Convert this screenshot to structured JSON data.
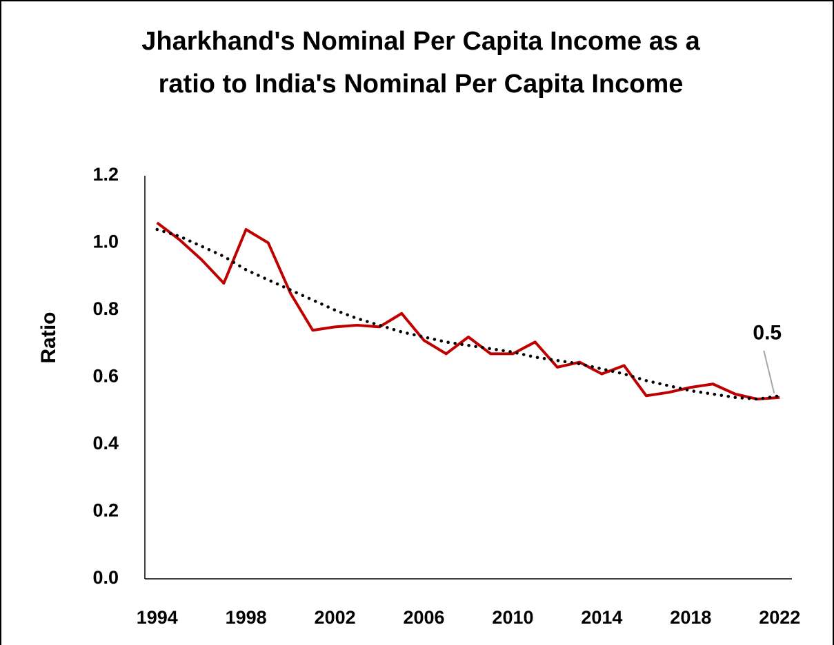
{
  "chart_data": {
    "type": "line",
    "title": "Jharkhand's Nominal Per Capita Income as a ratio to India's Nominal Per Capita Income",
    "y_label": "Ratio",
    "annotation": "0.5",
    "x": [
      1994,
      1995,
      1996,
      1997,
      1998,
      1999,
      2000,
      2001,
      2002,
      2003,
      2004,
      2005,
      2006,
      2007,
      2008,
      2009,
      2010,
      2011,
      2012,
      2013,
      2014,
      2015,
      2016,
      2017,
      2018,
      2019,
      2020,
      2021,
      2022
    ],
    "series": [
      {
        "color": "#c00000",
        "style": "solid",
        "values": [
          1.06,
          1.01,
          0.95,
          0.88,
          1.04,
          1.0,
          0.85,
          0.74,
          0.75,
          0.755,
          0.75,
          0.79,
          0.71,
          0.67,
          0.72,
          0.67,
          0.67,
          0.705,
          0.63,
          0.645,
          0.61,
          0.635,
          0.545,
          0.555,
          0.57,
          0.58,
          0.55,
          0.535,
          0.54
        ]
      },
      {
        "color": "#000000",
        "style": "dotted",
        "values": [
          1.04,
          1.02,
          0.99,
          0.96,
          0.92,
          0.89,
          0.86,
          0.83,
          0.8,
          0.775,
          0.755,
          0.735,
          0.72,
          0.705,
          0.695,
          0.685,
          0.675,
          0.66,
          0.65,
          0.64,
          0.625,
          0.61,
          0.59,
          0.575,
          0.56,
          0.55,
          0.54,
          0.535,
          0.545
        ]
      }
    ],
    "xlim": [
      1993.45,
      2022.55
    ],
    "xticks": [
      1994,
      1998,
      2002,
      2006,
      2010,
      2014,
      2018,
      2022
    ],
    "ylim": [
      0,
      1.2
    ],
    "yticks": [
      {
        "value": 0,
        "label": "0.0"
      },
      0.2,
      0.4,
      0.6,
      0.8,
      {
        "value": 1,
        "label": "1.0"
      },
      1.2
    ],
    "grid": false
  }
}
